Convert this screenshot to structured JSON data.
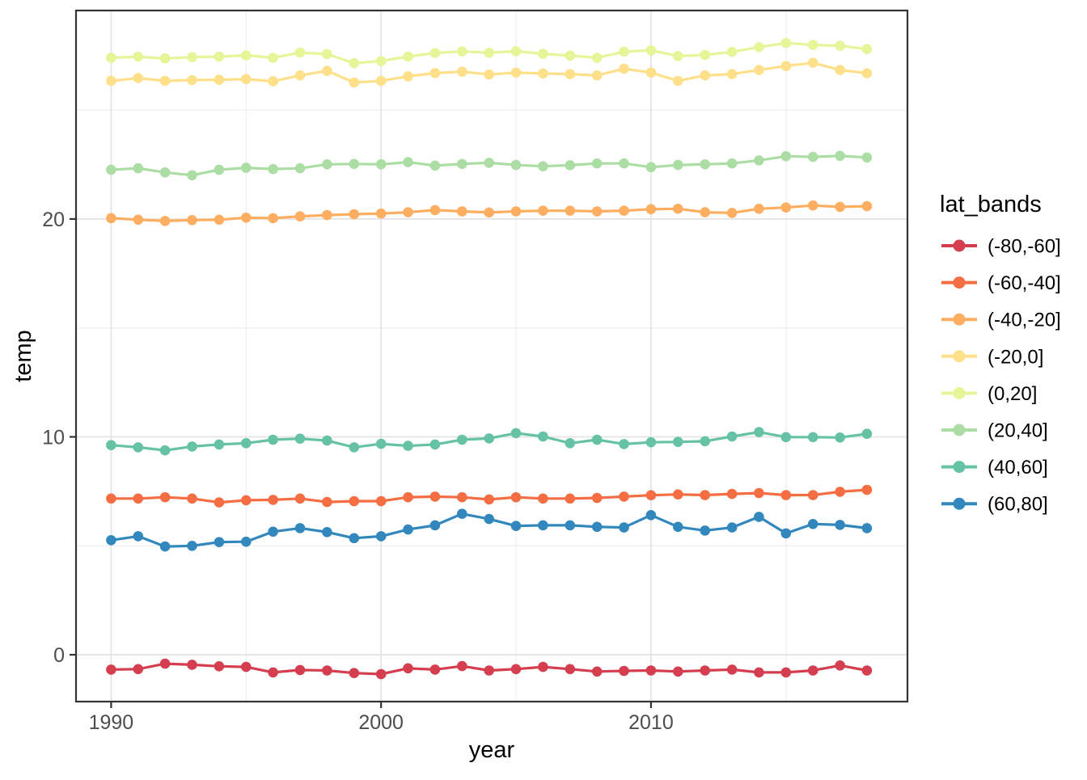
{
  "chart_data": {
    "type": "line",
    "title": "",
    "xlabel": "year",
    "ylabel": "temp",
    "legend_title": "lat_bands",
    "legend_position": "right",
    "grid": true,
    "x": [
      1990,
      1991,
      1992,
      1993,
      1994,
      1995,
      1996,
      1997,
      1998,
      1999,
      2000,
      2001,
      2002,
      2003,
      2004,
      2005,
      2006,
      2007,
      2008,
      2009,
      2010,
      2011,
      2012,
      2013,
      2014,
      2015,
      2016,
      2017,
      2018
    ],
    "xlim": [
      1988.7,
      2019.5
    ],
    "ylim": [
      -2.15,
      29.57
    ],
    "x_ticks": [
      1990,
      2000,
      2010
    ],
    "x_tick_labels": [
      "1990",
      "2000",
      "2010"
    ],
    "x_minor_ticks": [
      1995,
      2005,
      2015
    ],
    "y_ticks": [
      0,
      10,
      20
    ],
    "y_tick_labels": [
      "0",
      "10",
      "20"
    ],
    "y_minor_ticks": [
      5,
      15,
      25
    ],
    "series": [
      {
        "name": "(-80,-60]",
        "color": "#d53e4f",
        "values": [
          -0.68,
          -0.66,
          -0.41,
          -0.46,
          -0.53,
          -0.56,
          -0.81,
          -0.7,
          -0.72,
          -0.84,
          -0.89,
          -0.62,
          -0.68,
          -0.52,
          -0.72,
          -0.66,
          -0.56,
          -0.66,
          -0.77,
          -0.74,
          -0.72,
          -0.77,
          -0.72,
          -0.68,
          -0.81,
          -0.81,
          -0.72,
          -0.49,
          -0.72
        ]
      },
      {
        "name": "(-60,-40]",
        "color": "#f46d43",
        "values": [
          7.17,
          7.17,
          7.23,
          7.17,
          6.99,
          7.09,
          7.11,
          7.17,
          7.01,
          7.05,
          7.05,
          7.23,
          7.26,
          7.23,
          7.13,
          7.23,
          7.17,
          7.17,
          7.2,
          7.26,
          7.32,
          7.36,
          7.33,
          7.38,
          7.42,
          7.33,
          7.33,
          7.48,
          7.57
        ]
      },
      {
        "name": "(-40,-20]",
        "color": "#fdae61",
        "values": [
          20.04,
          19.97,
          19.91,
          19.95,
          19.97,
          20.06,
          20.04,
          20.12,
          20.18,
          20.22,
          20.25,
          20.31,
          20.41,
          20.35,
          20.3,
          20.35,
          20.38,
          20.38,
          20.35,
          20.38,
          20.45,
          20.47,
          20.31,
          20.28,
          20.47,
          20.53,
          20.62,
          20.56,
          20.59
        ]
      },
      {
        "name": "(-20,0]",
        "color": "#fee08b",
        "values": [
          26.34,
          26.47,
          26.34,
          26.38,
          26.39,
          26.42,
          26.32,
          26.59,
          26.8,
          26.27,
          26.34,
          26.55,
          26.7,
          26.76,
          26.63,
          26.72,
          26.68,
          26.65,
          26.59,
          26.9,
          26.72,
          26.34,
          26.59,
          26.65,
          26.84,
          27.02,
          27.17,
          26.84,
          26.69
        ]
      },
      {
        "name": "(0,20]",
        "color": "#e6f598",
        "values": [
          27.4,
          27.45,
          27.37,
          27.43,
          27.45,
          27.51,
          27.4,
          27.64,
          27.57,
          27.15,
          27.25,
          27.46,
          27.62,
          27.69,
          27.63,
          27.7,
          27.58,
          27.5,
          27.4,
          27.68,
          27.74,
          27.48,
          27.53,
          27.67,
          27.89,
          28.08,
          27.99,
          27.95,
          27.8
        ]
      },
      {
        "name": "(20,40]",
        "color": "#abdda4",
        "values": [
          22.26,
          22.33,
          22.14,
          22.01,
          22.26,
          22.35,
          22.29,
          22.33,
          22.51,
          22.53,
          22.51,
          22.61,
          22.45,
          22.53,
          22.58,
          22.48,
          22.42,
          22.47,
          22.55,
          22.55,
          22.38,
          22.48,
          22.51,
          22.55,
          22.69,
          22.88,
          22.85,
          22.9,
          22.82
        ]
      },
      {
        "name": "(40,60]",
        "color": "#66c2a5",
        "values": [
          9.62,
          9.52,
          9.38,
          9.56,
          9.65,
          9.71,
          9.87,
          9.92,
          9.83,
          9.52,
          9.68,
          9.59,
          9.65,
          9.87,
          9.93,
          10.17,
          10.02,
          9.71,
          9.87,
          9.67,
          9.75,
          9.77,
          9.8,
          10.02,
          10.22,
          9.99,
          9.99,
          9.97,
          10.14
        ]
      },
      {
        "name": "(60,80]",
        "color": "#3288bd",
        "values": [
          5.26,
          5.44,
          4.97,
          5.0,
          5.17,
          5.19,
          5.65,
          5.81,
          5.63,
          5.35,
          5.44,
          5.75,
          5.94,
          6.47,
          6.23,
          5.91,
          5.94,
          5.94,
          5.87,
          5.84,
          6.41,
          5.87,
          5.7,
          5.84,
          6.33,
          5.57,
          6.0,
          5.96,
          5.81
        ]
      }
    ],
    "style_colors": {
      "panel_background": "#ffffff",
      "panel_border": "#333333",
      "grid_major": "#e4e4e4",
      "grid_minor": "#eeeeee",
      "tick_mark": "#333333",
      "tick_text": "#4d4d4d",
      "title_text": "#000000"
    }
  }
}
